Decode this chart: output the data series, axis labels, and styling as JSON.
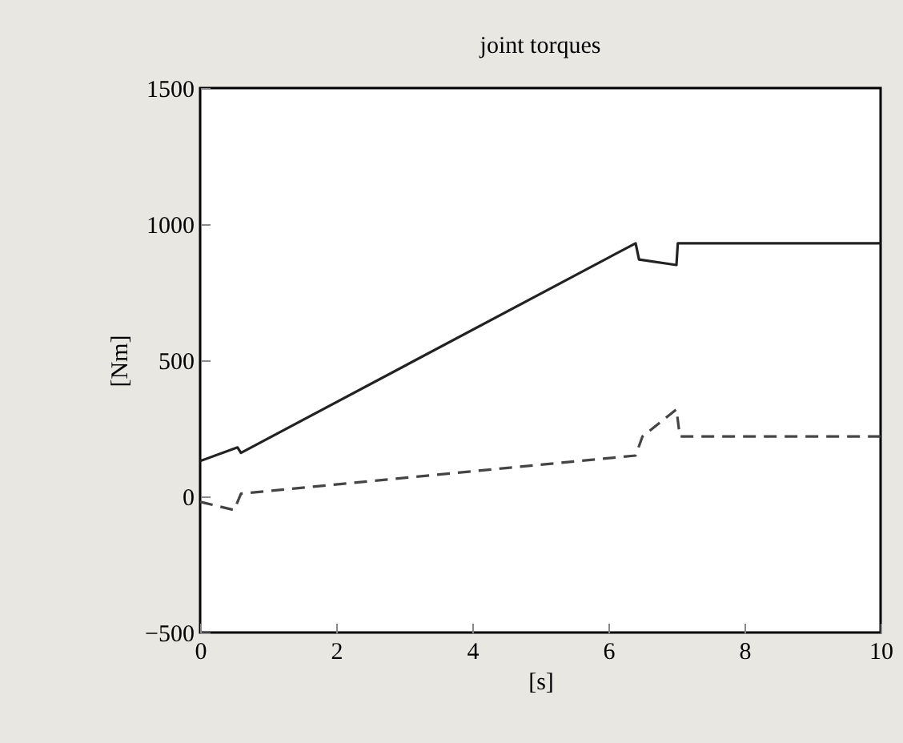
{
  "chart_data": {
    "type": "line",
    "title": "joint torques",
    "xlabel": "[s]",
    "ylabel": "[Nm]",
    "xlim": [
      0,
      10
    ],
    "xticks": [
      0,
      2,
      4,
      6,
      8,
      10
    ],
    "ylim": [
      -500,
      1500
    ],
    "yticks": [
      {
        "value": -500,
        "label": "−500"
      },
      0,
      500,
      1000,
      1500
    ],
    "grid": false,
    "series": [
      {
        "color": "#222222",
        "line_style": "solid",
        "x": [
          0,
          0.55,
          0.6,
          6.4,
          6.45,
          7.0,
          7.02,
          10
        ],
        "values": [
          130,
          180,
          160,
          930,
          870,
          850,
          930,
          930
        ]
      },
      {
        "color": "#444444",
        "line_style": "dashed",
        "x": [
          0,
          0.5,
          0.6,
          6.4,
          6.5,
          7.0,
          7.05,
          10
        ],
        "values": [
          -20,
          -50,
          10,
          150,
          220,
          320,
          220,
          220
        ]
      }
    ]
  }
}
